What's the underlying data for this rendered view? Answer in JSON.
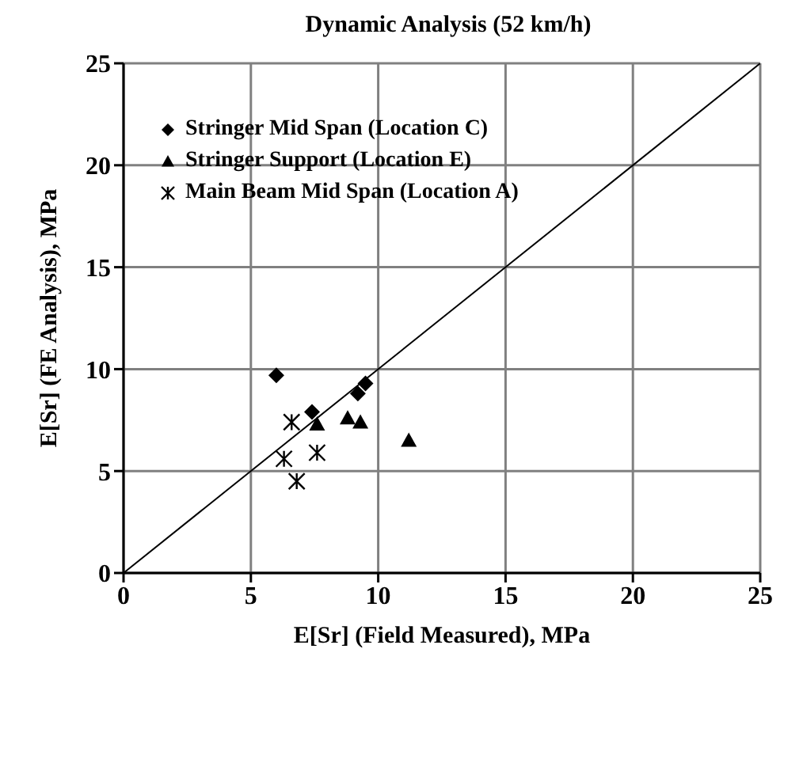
{
  "chart_data": {
    "type": "scatter",
    "title": "Dynamic Analysis (52 km/h)",
    "xlabel": "E[Sr] (Field Measured), MPa",
    "ylabel": "E[Sr] (FE Analysis), MPa",
    "xlim": [
      0,
      25
    ],
    "ylim": [
      0,
      25
    ],
    "xticks": [
      0,
      5,
      10,
      15,
      20,
      25
    ],
    "yticks": [
      0,
      5,
      10,
      15,
      20,
      25
    ],
    "grid": true,
    "legend": "top left",
    "series": [
      {
        "name": "Stringer Mid Span (Location C)",
        "color": "#000000",
        "marker": "diamond",
        "x": [
          6.0,
          7.4,
          9.2,
          9.5
        ],
        "values": [
          9.7,
          7.9,
          8.8,
          9.3
        ]
      },
      {
        "name": "Stringer Support (Location E)",
        "color": "#000000",
        "marker": "triangle",
        "x": [
          7.6,
          8.8,
          9.3,
          11.2
        ],
        "values": [
          7.3,
          7.6,
          7.4,
          6.5
        ]
      },
      {
        "name": "Main Beam Mid Span (Location A)",
        "color": "#000000",
        "marker": "cross",
        "x": [
          6.6,
          7.6,
          6.3,
          6.8
        ],
        "values": [
          7.4,
          5.9,
          5.6,
          4.5
        ]
      },
      {
        "type": "line",
        "color": "#000000",
        "marker": "none",
        "x": [
          0,
          25
        ],
        "values": [
          0,
          25
        ]
      }
    ]
  }
}
